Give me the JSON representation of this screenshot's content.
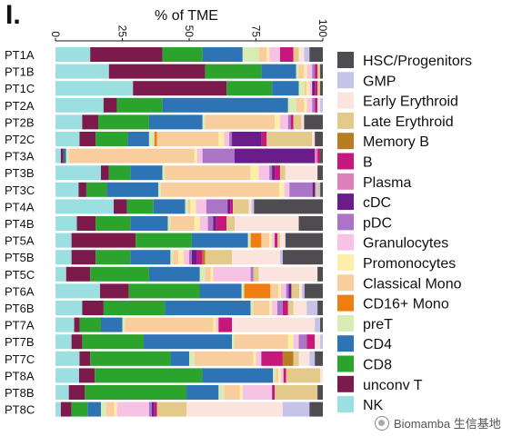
{
  "panel_label": "I.",
  "watermark_text": "Biomamba 生信基地",
  "chart_data": {
    "type": "bar",
    "orientation": "horizontal",
    "stacked": true,
    "title": "% of TME",
    "xlim": [
      0,
      100
    ],
    "xticks": [
      "0",
      "25",
      "50",
      "75",
      "100"
    ],
    "grid": false,
    "legend_position": "right",
    "categories": [
      "PT1A",
      "PT1B",
      "PT1C",
      "PT2A",
      "PT2B",
      "PT2C",
      "PT3A",
      "PT3B",
      "PT3C",
      "PT4A",
      "PT4B",
      "PT5A",
      "PT5B",
      "PT5C",
      "PT6A",
      "PT6B",
      "PT7A",
      "PT7B",
      "PT7C",
      "PT8A",
      "PT8B",
      "PT8C"
    ],
    "series": [
      {
        "name": "NK",
        "color": "#9cdfe0",
        "values": [
          13,
          20,
          29,
          18,
          10,
          9,
          2,
          17,
          9,
          22,
          8,
          6,
          6,
          4,
          17,
          10,
          7,
          6,
          9,
          9,
          5,
          2
        ]
      },
      {
        "name": "unconv T",
        "color": "#7d1a4c",
        "values": [
          27,
          36,
          35,
          5,
          6,
          6,
          1,
          3,
          3,
          5,
          7,
          24,
          9,
          9,
          11,
          8,
          2,
          4,
          4,
          6,
          6,
          4
        ]
      },
      {
        "name": "CD8",
        "color": "#2ca32c",
        "values": [
          15,
          21,
          17,
          17,
          19,
          12,
          0,
          8,
          8,
          10,
          13,
          21,
          13,
          22,
          27,
          23,
          8,
          23,
          30,
          41,
          38,
          6
        ]
      },
      {
        "name": "CD4",
        "color": "#2e73b4",
        "values": [
          15,
          13,
          10,
          47,
          20,
          8,
          1,
          12,
          20,
          12,
          14,
          21,
          15,
          19,
          16,
          32,
          8,
          33,
          7,
          27,
          12,
          5
        ]
      },
      {
        "name": "preT",
        "color": "#d8ecb4",
        "values": [
          6,
          1,
          2,
          3,
          1,
          2,
          1,
          1,
          1,
          1,
          1,
          1,
          1,
          2,
          1,
          1,
          1,
          1,
          2,
          1,
          2,
          2
        ]
      },
      {
        "name": "CD16+ Mono",
        "color": "#ee7e11",
        "values": [
          0,
          0,
          0,
          0,
          0,
          1,
          0,
          0,
          0,
          0,
          0,
          4,
          0,
          0,
          10,
          0,
          0,
          0,
          0,
          0,
          0,
          0
        ]
      },
      {
        "name": "Classical Mono",
        "color": "#f8ce9f",
        "values": [
          3,
          2,
          1,
          3,
          26,
          23,
          47,
          32,
          46,
          1,
          9,
          3,
          2,
          2,
          3,
          6,
          33,
          20,
          22,
          1,
          6,
          3
        ]
      },
      {
        "name": "Promonocytes",
        "color": "#fdeea8",
        "values": [
          1,
          1,
          1,
          1,
          2,
          2,
          1,
          3,
          2,
          2,
          2,
          1,
          2,
          1,
          1,
          1,
          1,
          2,
          1,
          1,
          1,
          1
        ]
      },
      {
        "name": "Granulocytes",
        "color": "#f7c3e4",
        "values": [
          4,
          2,
          1,
          2,
          3,
          2,
          2,
          4,
          2,
          4,
          3,
          1,
          2,
          14,
          2,
          2,
          1,
          2,
          2,
          1,
          11,
          12
        ]
      },
      {
        "name": "pDC",
        "color": "#ab74c6",
        "values": [
          0,
          1,
          0,
          1,
          1,
          1,
          12,
          1,
          9,
          8,
          2,
          0,
          1,
          1,
          1,
          2,
          0,
          3,
          0,
          0,
          0,
          1
        ]
      },
      {
        "name": "cDC",
        "color": "#6a1c8a",
        "values": [
          0,
          0,
          1,
          0,
          0,
          11,
          30,
          1,
          1,
          1,
          1,
          0,
          2,
          0,
          1,
          0,
          0,
          0,
          0,
          0,
          0,
          1
        ]
      },
      {
        "name": "Plasma",
        "color": "#df7fb8",
        "values": [
          0,
          0,
          0,
          0,
          0,
          0,
          1,
          0,
          0,
          0,
          0,
          0,
          0,
          0,
          0,
          0,
          0,
          0,
          0,
          0,
          0,
          0
        ]
      },
      {
        "name": "B",
        "color": "#c5177c",
        "values": [
          5,
          1,
          1,
          1,
          1,
          2,
          1,
          2,
          0,
          1,
          4,
          1,
          2,
          0,
          0,
          2,
          5,
          3,
          8,
          1,
          1,
          1
        ]
      },
      {
        "name": "Memory B",
        "color": "#b77d20",
        "values": [
          0,
          0,
          0,
          0,
          0,
          0,
          0,
          0,
          0,
          0,
          0,
          0,
          1,
          0,
          0,
          0,
          0,
          0,
          4,
          0,
          0,
          0
        ]
      },
      {
        "name": "Late Erythroid",
        "color": "#e3c98a",
        "values": [
          2,
          1,
          1,
          0,
          3,
          17,
          0,
          2,
          1,
          6,
          3,
          1,
          10,
          2,
          3,
          2,
          0,
          0,
          2,
          13,
          16,
          11
        ]
      },
      {
        "name": "Early Erythroid",
        "color": "#fbe4de",
        "values": [
          2,
          0,
          0,
          1,
          1,
          1,
          0,
          12,
          0,
          1,
          24,
          2,
          18,
          22,
          1,
          5,
          31,
          2,
          4,
          1,
          0,
          36
        ]
      },
      {
        "name": "GMP",
        "color": "#c5c3e8",
        "values": [
          2,
          0,
          0,
          1,
          0,
          0,
          0,
          0,
          1,
          1,
          0,
          0,
          1,
          0,
          1,
          4,
          2,
          1,
          2,
          0,
          0,
          10
        ]
      },
      {
        "name": "HSC/Progenitors",
        "color": "#4e4c50",
        "values": [
          5,
          1,
          1,
          0,
          7,
          3,
          1,
          2,
          1,
          26,
          9,
          14,
          15,
          2,
          7,
          2,
          1,
          0,
          3,
          0,
          2,
          5
        ]
      }
    ]
  }
}
